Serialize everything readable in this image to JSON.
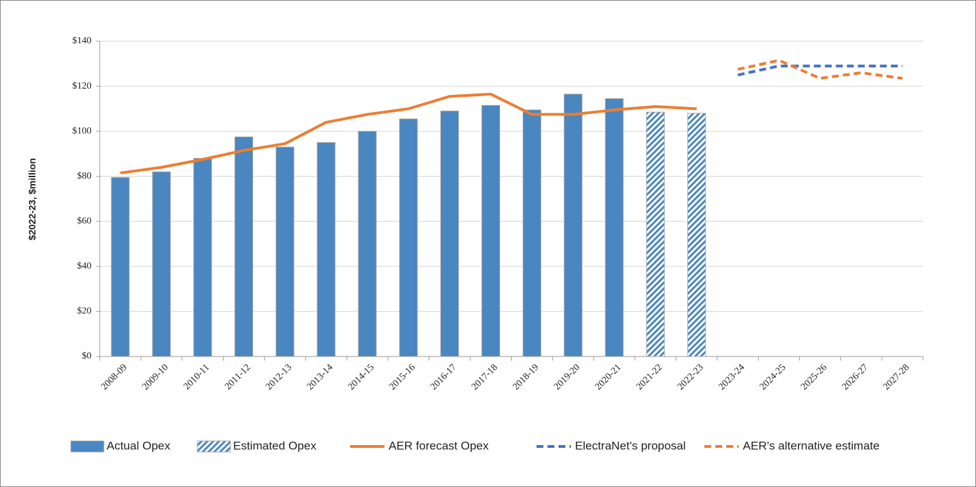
{
  "chart_data": {
    "type": "bar",
    "y_label": "$2022-23, $million",
    "categories": [
      "2008-09",
      "2009-10",
      "2010-11",
      "2011-12",
      "2012-13",
      "2013-14",
      "2014-15",
      "2015-16",
      "2016-17",
      "2017-18",
      "2018-19",
      "2019-20",
      "2020-21",
      "2021-22",
      "2022-23",
      "2023-24",
      "2024-25",
      "2025-26",
      "2026-27",
      "2027-28"
    ],
    "series": [
      {
        "name": "Actual Opex",
        "type": "bar",
        "color": "#4a86c0",
        "hatched": false,
        "values": [
          79.5,
          82,
          88,
          97.5,
          93,
          95,
          100,
          105.5,
          109,
          111.5,
          109.5,
          116.5,
          114.5,
          null,
          null,
          null,
          null,
          null,
          null,
          null
        ]
      },
      {
        "name": "Estimated Opex",
        "type": "bar",
        "color": "#4a86c0",
        "hatched": true,
        "values": [
          null,
          null,
          null,
          null,
          null,
          null,
          null,
          null,
          null,
          null,
          null,
          null,
          null,
          108.5,
          108,
          null,
          null,
          null,
          null,
          null
        ]
      },
      {
        "name": "AER forecast Opex",
        "type": "line",
        "color": "#ed7d31",
        "dashed": false,
        "values": [
          81.5,
          84,
          87.5,
          91.5,
          94.5,
          104,
          107.5,
          110,
          115.5,
          116.5,
          107.5,
          107.5,
          109.5,
          111,
          110,
          null,
          null,
          null,
          null,
          null
        ]
      },
      {
        "name": "ElectraNet's proposal",
        "type": "line",
        "color": "#4472c4",
        "dashed": true,
        "values": [
          null,
          null,
          null,
          null,
          null,
          null,
          null,
          null,
          null,
          null,
          null,
          null,
          null,
          null,
          null,
          125,
          129,
          129,
          129,
          129
        ]
      },
      {
        "name": "AER's alternative estimate",
        "type": "line",
        "color": "#ed7d31",
        "dashed": true,
        "values": [
          null,
          null,
          null,
          null,
          null,
          null,
          null,
          null,
          null,
          null,
          null,
          null,
          null,
          null,
          null,
          127.5,
          131.5,
          123.5,
          126,
          123.5
        ]
      }
    ],
    "ylim": [
      0,
      140
    ],
    "yticks": [
      {
        "value": 0,
        "label": "$0"
      },
      {
        "value": 20,
        "label": "$20"
      },
      {
        "value": 40,
        "label": "$40"
      },
      {
        "value": 60,
        "label": "$60"
      },
      {
        "value": 80,
        "label": "$80"
      },
      {
        "value": 100,
        "label": "$100"
      },
      {
        "value": 120,
        "label": "$120"
      },
      {
        "value": 140,
        "label": "$140"
      }
    ],
    "grid": true,
    "legend": "bottom"
  }
}
